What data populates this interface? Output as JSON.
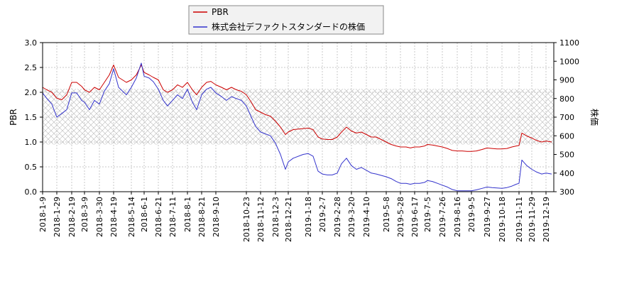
{
  "chart_data": {
    "type": "line",
    "title": "",
    "legend": {
      "placement": "top-center",
      "entries": [
        "PBR",
        "株式会社デファクトスタンダードの株価"
      ]
    },
    "left_axis": {
      "label": "PBR",
      "range": [
        0.0,
        3.0
      ],
      "ticks": [
        "0.0",
        "0.5",
        "1.0",
        "1.5",
        "2.0",
        "2.5",
        "3.0"
      ]
    },
    "right_axis": {
      "label": "株価",
      "range": [
        300,
        1100
      ],
      "ticks": [
        "300",
        "400",
        "500",
        "600",
        "700",
        "800",
        "900",
        "1000",
        "1100"
      ]
    },
    "x_ticks": [
      "2018-1-9",
      "2018-1-29",
      "2018-2-19",
      "2018-3-9",
      "2018-3-30",
      "2018-4-19",
      "2018-5-14",
      "2018-6-1",
      "2018-6-21",
      "2018-7-11",
      "2018-8-1",
      "2018-8-21",
      "2018-9-10",
      "2018-10-23",
      "2018-11-12",
      "2018-12-3",
      "2018-12-21",
      "2019-1-18",
      "2019-2-7",
      "2019-2-28",
      "2019-3-20",
      "2019-4-10",
      "2019-5-8",
      "2019-5-28",
      "2019-6-17",
      "2019-7-5",
      "2019-7-26",
      "2019-8-16",
      "2019-9-5",
      "2019-9-27",
      "2019-10-18",
      "2019-11-11",
      "2019-11-29",
      "2019-12-19"
    ],
    "band": {
      "axis": "left",
      "range": [
        0.95,
        2.07
      ],
      "pattern": "crosshatch"
    },
    "grid": true,
    "series": [
      {
        "name": "PBR",
        "axis": "left",
        "color": "#cc0000",
        "points": [
          [
            "2018-1-9",
            2.1
          ],
          [
            "2018-1-15",
            2.05
          ],
          [
            "2018-1-22",
            2.0
          ],
          [
            "2018-1-29",
            1.88
          ],
          [
            "2018-2-5",
            1.85
          ],
          [
            "2018-2-12",
            1.95
          ],
          [
            "2018-2-19",
            2.2
          ],
          [
            "2018-2-26",
            2.2
          ],
          [
            "2018-3-5",
            2.12
          ],
          [
            "2018-3-9",
            2.05
          ],
          [
            "2018-3-16",
            2.0
          ],
          [
            "2018-3-23",
            2.1
          ],
          [
            "2018-3-30",
            2.05
          ],
          [
            "2018-4-6",
            2.2
          ],
          [
            "2018-4-13",
            2.35
          ],
          [
            "2018-4-19",
            2.55
          ],
          [
            "2018-4-26",
            2.3
          ],
          [
            "2018-5-7",
            2.2
          ],
          [
            "2018-5-14",
            2.25
          ],
          [
            "2018-5-21",
            2.35
          ],
          [
            "2018-5-28",
            2.55
          ],
          [
            "2018-6-1",
            2.4
          ],
          [
            "2018-6-8",
            2.35
          ],
          [
            "2018-6-14",
            2.3
          ],
          [
            "2018-6-21",
            2.25
          ],
          [
            "2018-6-28",
            2.05
          ],
          [
            "2018-7-4",
            2.0
          ],
          [
            "2018-7-11",
            2.05
          ],
          [
            "2018-7-18",
            2.15
          ],
          [
            "2018-7-25",
            2.1
          ],
          [
            "2018-8-1",
            2.2
          ],
          [
            "2018-8-8",
            2.05
          ],
          [
            "2018-8-14",
            1.95
          ],
          [
            "2018-8-21",
            2.1
          ],
          [
            "2018-8-28",
            2.2
          ],
          [
            "2018-9-3",
            2.22
          ],
          [
            "2018-9-10",
            2.15
          ],
          [
            "2018-9-18",
            2.1
          ],
          [
            "2018-9-25",
            2.05
          ],
          [
            "2018-10-2",
            2.1
          ],
          [
            "2018-10-9",
            2.05
          ],
          [
            "2018-10-16",
            2.02
          ],
          [
            "2018-10-23",
            1.95
          ],
          [
            "2018-10-30",
            1.8
          ],
          [
            "2018-11-5",
            1.65
          ],
          [
            "2018-11-12",
            1.6
          ],
          [
            "2018-11-19",
            1.55
          ],
          [
            "2018-11-26",
            1.52
          ],
          [
            "2018-12-3",
            1.42
          ],
          [
            "2018-12-10",
            1.3
          ],
          [
            "2018-12-17",
            1.15
          ],
          [
            "2018-12-21",
            1.2
          ],
          [
            "2018-12-28",
            1.25
          ],
          [
            "2019-1-11",
            1.27
          ],
          [
            "2019-1-18",
            1.28
          ],
          [
            "2019-1-25",
            1.25
          ],
          [
            "2019-2-1",
            1.1
          ],
          [
            "2019-2-7",
            1.06
          ],
          [
            "2019-2-14",
            1.05
          ],
          [
            "2019-2-21",
            1.05
          ],
          [
            "2019-2-28",
            1.1
          ],
          [
            "2019-3-6",
            1.2
          ],
          [
            "2019-3-13",
            1.3
          ],
          [
            "2019-3-20",
            1.22
          ],
          [
            "2019-3-27",
            1.18
          ],
          [
            "2019-4-3",
            1.2
          ],
          [
            "2019-4-10",
            1.15
          ],
          [
            "2019-4-17",
            1.1
          ],
          [
            "2019-4-24",
            1.1
          ],
          [
            "2019-5-8",
            1.0
          ],
          [
            "2019-5-15",
            0.95
          ],
          [
            "2019-5-22",
            0.92
          ],
          [
            "2019-5-28",
            0.9
          ],
          [
            "2019-6-5",
            0.9
          ],
          [
            "2019-6-11",
            0.88
          ],
          [
            "2019-6-17",
            0.9
          ],
          [
            "2019-6-24",
            0.9
          ],
          [
            "2019-7-1",
            0.92
          ],
          [
            "2019-7-5",
            0.95
          ],
          [
            "2019-7-12",
            0.94
          ],
          [
            "2019-7-19",
            0.92
          ],
          [
            "2019-7-26",
            0.9
          ],
          [
            "2019-8-2",
            0.87
          ],
          [
            "2019-8-9",
            0.83
          ],
          [
            "2019-8-16",
            0.82
          ],
          [
            "2019-8-23",
            0.82
          ],
          [
            "2019-8-30",
            0.81
          ],
          [
            "2019-9-5",
            0.81
          ],
          [
            "2019-9-12",
            0.82
          ],
          [
            "2019-9-20",
            0.85
          ],
          [
            "2019-9-27",
            0.88
          ],
          [
            "2019-10-4",
            0.87
          ],
          [
            "2019-10-11",
            0.86
          ],
          [
            "2019-10-18",
            0.86
          ],
          [
            "2019-10-25",
            0.87
          ],
          [
            "2019-11-1",
            0.9
          ],
          [
            "2019-11-7",
            0.92
          ],
          [
            "2019-11-11",
            0.93
          ],
          [
            "2019-11-15",
            1.18
          ],
          [
            "2019-11-22",
            1.12
          ],
          [
            "2019-11-29",
            1.08
          ],
          [
            "2019-12-6",
            1.03
          ],
          [
            "2019-12-13",
            1.0
          ],
          [
            "2019-12-19",
            1.02
          ],
          [
            "2019-12-27",
            1.0
          ]
        ]
      },
      {
        "name": "株式会社デファクトスタンダードの株価",
        "axis": "right",
        "color": "#3333cc",
        "points": [
          [
            "2018-1-9",
            830
          ],
          [
            "2018-1-15",
            800
          ],
          [
            "2018-1-22",
            770
          ],
          [
            "2018-1-29",
            700
          ],
          [
            "2018-2-5",
            720
          ],
          [
            "2018-2-12",
            740
          ],
          [
            "2018-2-19",
            830
          ],
          [
            "2018-2-26",
            830
          ],
          [
            "2018-3-5",
            790
          ],
          [
            "2018-3-9",
            780
          ],
          [
            "2018-3-16",
            740
          ],
          [
            "2018-3-23",
            790
          ],
          [
            "2018-3-30",
            770
          ],
          [
            "2018-4-6",
            840
          ],
          [
            "2018-4-13",
            880
          ],
          [
            "2018-4-19",
            960
          ],
          [
            "2018-4-26",
            860
          ],
          [
            "2018-5-7",
            820
          ],
          [
            "2018-5-14",
            860
          ],
          [
            "2018-5-21",
            910
          ],
          [
            "2018-5-28",
            990
          ],
          [
            "2018-6-1",
            920
          ],
          [
            "2018-6-8",
            910
          ],
          [
            "2018-6-14",
            890
          ],
          [
            "2018-6-21",
            850
          ],
          [
            "2018-6-28",
            790
          ],
          [
            "2018-7-4",
            760
          ],
          [
            "2018-7-11",
            790
          ],
          [
            "2018-7-18",
            820
          ],
          [
            "2018-7-25",
            800
          ],
          [
            "2018-8-1",
            850
          ],
          [
            "2018-8-8",
            780
          ],
          [
            "2018-8-14",
            740
          ],
          [
            "2018-8-21",
            820
          ],
          [
            "2018-8-28",
            850
          ],
          [
            "2018-9-3",
            860
          ],
          [
            "2018-9-10",
            830
          ],
          [
            "2018-9-18",
            810
          ],
          [
            "2018-9-25",
            790
          ],
          [
            "2018-10-2",
            810
          ],
          [
            "2018-10-9",
            800
          ],
          [
            "2018-10-16",
            790
          ],
          [
            "2018-10-23",
            760
          ],
          [
            "2018-10-30",
            700
          ],
          [
            "2018-11-5",
            650
          ],
          [
            "2018-11-12",
            620
          ],
          [
            "2018-11-19",
            610
          ],
          [
            "2018-11-26",
            600
          ],
          [
            "2018-12-3",
            560
          ],
          [
            "2018-12-10",
            500
          ],
          [
            "2018-12-17",
            420
          ],
          [
            "2018-12-21",
            460
          ],
          [
            "2018-12-28",
            480
          ],
          [
            "2019-1-11",
            500
          ],
          [
            "2019-1-18",
            505
          ],
          [
            "2019-1-25",
            490
          ],
          [
            "2019-2-1",
            410
          ],
          [
            "2019-2-7",
            395
          ],
          [
            "2019-2-14",
            390
          ],
          [
            "2019-2-21",
            390
          ],
          [
            "2019-2-28",
            400
          ],
          [
            "2019-3-6",
            450
          ],
          [
            "2019-3-13",
            480
          ],
          [
            "2019-3-20",
            440
          ],
          [
            "2019-3-27",
            420
          ],
          [
            "2019-4-3",
            430
          ],
          [
            "2019-4-10",
            415
          ],
          [
            "2019-4-17",
            400
          ],
          [
            "2019-4-24",
            395
          ],
          [
            "2019-5-8",
            380
          ],
          [
            "2019-5-15",
            370
          ],
          [
            "2019-5-22",
            355
          ],
          [
            "2019-5-28",
            345
          ],
          [
            "2019-6-5",
            345
          ],
          [
            "2019-6-11",
            340
          ],
          [
            "2019-6-17",
            345
          ],
          [
            "2019-6-24",
            345
          ],
          [
            "2019-7-1",
            350
          ],
          [
            "2019-7-5",
            360
          ],
          [
            "2019-7-12",
            355
          ],
          [
            "2019-7-19",
            345
          ],
          [
            "2019-7-26",
            335
          ],
          [
            "2019-8-2",
            325
          ],
          [
            "2019-8-9",
            312
          ],
          [
            "2019-8-16",
            305
          ],
          [
            "2019-8-23",
            305
          ],
          [
            "2019-8-30",
            305
          ],
          [
            "2019-9-5",
            305
          ],
          [
            "2019-9-12",
            310
          ],
          [
            "2019-9-20",
            318
          ],
          [
            "2019-9-27",
            325
          ],
          [
            "2019-10-4",
            322
          ],
          [
            "2019-10-11",
            320
          ],
          [
            "2019-10-18",
            318
          ],
          [
            "2019-10-25",
            322
          ],
          [
            "2019-11-1",
            330
          ],
          [
            "2019-11-7",
            340
          ],
          [
            "2019-11-11",
            345
          ],
          [
            "2019-11-15",
            470
          ],
          [
            "2019-11-22",
            440
          ],
          [
            "2019-11-29",
            420
          ],
          [
            "2019-12-6",
            405
          ],
          [
            "2019-12-13",
            395
          ],
          [
            "2019-12-19",
            400
          ],
          [
            "2019-12-27",
            395
          ]
        ]
      }
    ]
  }
}
